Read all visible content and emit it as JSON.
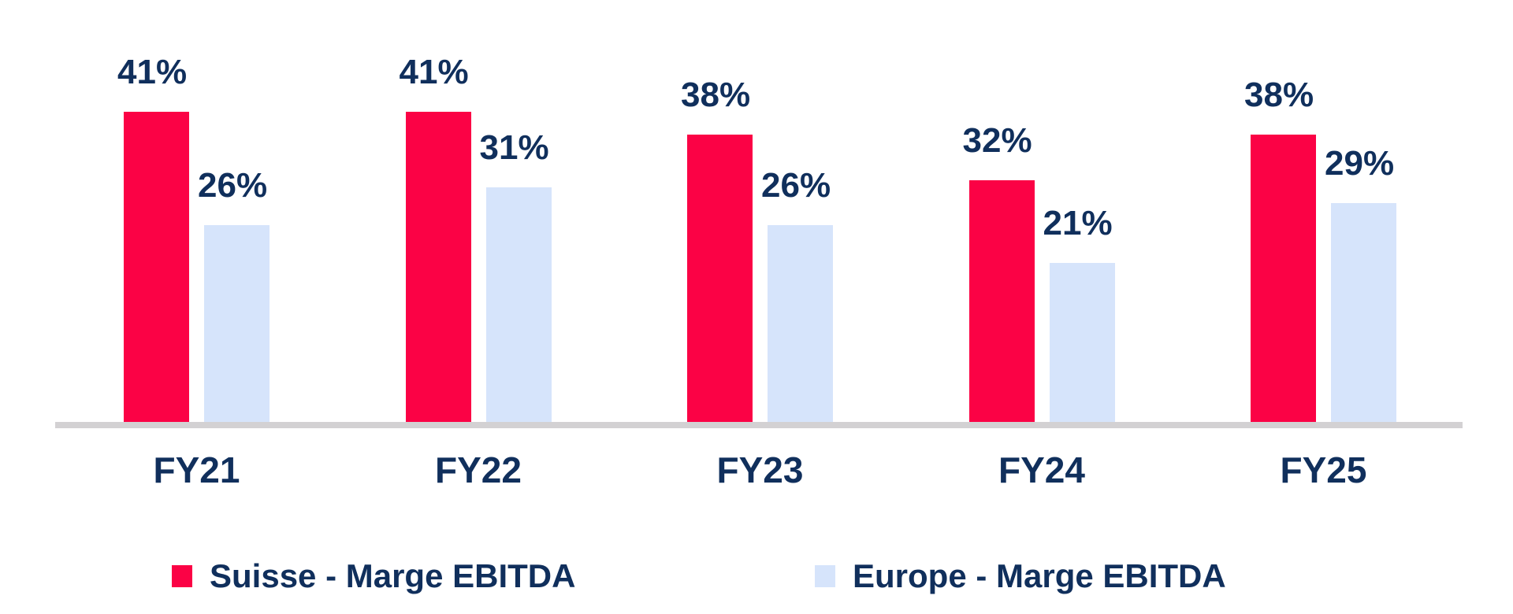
{
  "chart_data": {
    "type": "bar",
    "categories": [
      "FY21",
      "FY22",
      "FY23",
      "FY24",
      "FY25"
    ],
    "series": [
      {
        "name": "Suisse - Marge EBITDA",
        "color": "#fb0245",
        "values": [
          41,
          41,
          38,
          32,
          38
        ],
        "labels": [
          "41%",
          "41%",
          "38%",
          "32%",
          "38%"
        ]
      },
      {
        "name": "Europe - Marge EBITDA",
        "color": "#d6e4fb",
        "values": [
          26,
          31,
          26,
          21,
          29
        ],
        "labels": [
          "26%",
          "31%",
          "26%",
          "21%",
          "29%"
        ]
      }
    ],
    "title": "",
    "xlabel": "",
    "ylabel": "",
    "ylim": [
      0,
      44
    ],
    "grid": false,
    "value_labels_shown": true,
    "legend_position": "bottom",
    "text_color": "#102f5c",
    "axis_line_color": "#d3d1d3",
    "background_color": "#ffffff"
  },
  "legend": {
    "items": [
      {
        "label": "Suisse - Marge EBITDA",
        "color": "#fb0245"
      },
      {
        "label": "Europe - Marge EBITDA",
        "color": "#d6e4fb"
      }
    ]
  }
}
